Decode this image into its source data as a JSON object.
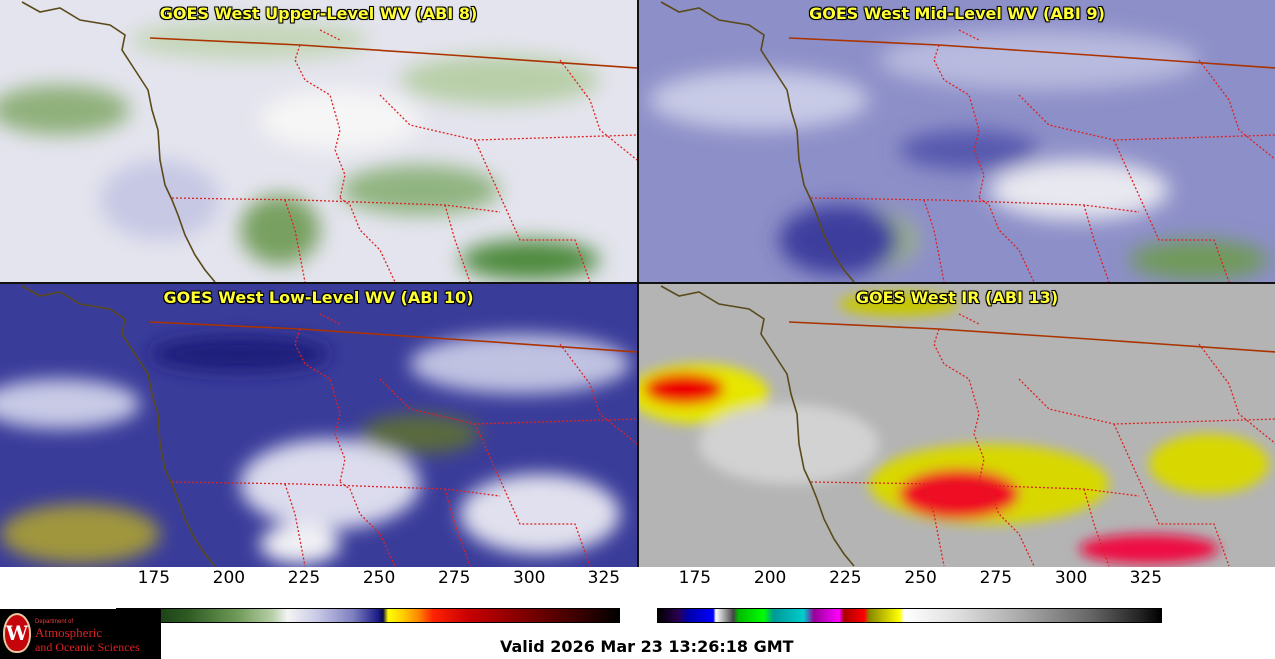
{
  "panels": [
    {
      "title": "GOES West Upper-Level WV (ABI 8)",
      "theme": "upper"
    },
    {
      "title": "GOES West Mid-Level WV (ABI 9)",
      "theme": "mid"
    },
    {
      "title": "GOES West Low-Level WV (ABI 10)",
      "theme": "low"
    },
    {
      "title": "GOES West IR (ABI 13)",
      "theme": "ir"
    }
  ],
  "colorbars": {
    "wv": {
      "ticks": [
        "175",
        "200",
        "225",
        "250",
        "275",
        "300",
        "325"
      ]
    },
    "ir": {
      "ticks": [
        "175",
        "200",
        "225",
        "250",
        "275",
        "300",
        "325"
      ]
    }
  },
  "logo": {
    "line1": "Department of",
    "line2": "Atmospheric",
    "line3": "and Oceanic Sciences",
    "seal_letter": "W"
  },
  "valid_time": "Valid 2026 Mar 23 13:26:18 GMT",
  "colors": {
    "title_text": "#ffff33",
    "state_border": "#dd2222",
    "coastline": "#5a4a1a",
    "intl_border": "#aa3300"
  }
}
